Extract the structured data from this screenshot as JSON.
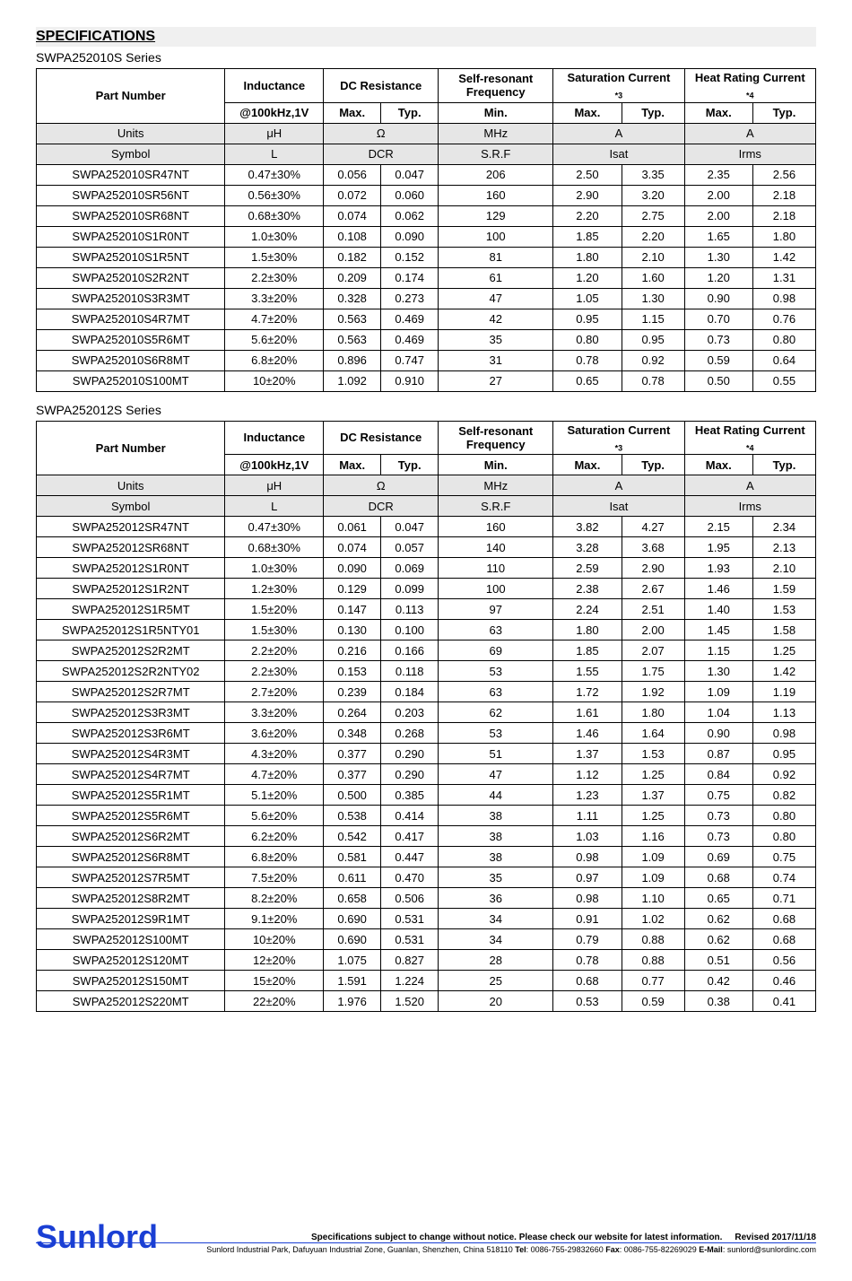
{
  "page": {
    "title": "SPECIFICATIONS"
  },
  "series1": {
    "title": "SWPA252010S Series",
    "headers": {
      "part": "Part Number",
      "inductance": "Inductance",
      "dcres": "DC Resistance",
      "srf": "Self-resonant Frequency",
      "isat": "Saturation Current",
      "isat_note": "*3",
      "irms": "Heat Rating Current",
      "irms_note": "*4",
      "ind_cond": "@100kHz,1V",
      "max": "Max.",
      "typ": "Typ.",
      "min": "Min."
    },
    "units": {
      "label": "Units",
      "ind": "μH",
      "dcr": "Ω",
      "srf": "MHz",
      "isat": "A",
      "irms": "A"
    },
    "symbol": {
      "label": "Symbol",
      "ind": "L",
      "dcr": "DCR",
      "srf": "S.R.F",
      "isat": "Isat",
      "irms": "Irms"
    },
    "rows": [
      {
        "pn": "SWPA252010SR47NT",
        "ind": "0.47±30%",
        "dmax": "0.056",
        "dtyp": "0.047",
        "srf": "206",
        "imax": "2.50",
        "ityp": "3.35",
        "rmax": "2.35",
        "rtyp": "2.56"
      },
      {
        "pn": "SWPA252010SR56NT",
        "ind": "0.56±30%",
        "dmax": "0.072",
        "dtyp": "0.060",
        "srf": "160",
        "imax": "2.90",
        "ityp": "3.20",
        "rmax": "2.00",
        "rtyp": "2.18"
      },
      {
        "pn": "SWPA252010SR68NT",
        "ind": "0.68±30%",
        "dmax": "0.074",
        "dtyp": "0.062",
        "srf": "129",
        "imax": "2.20",
        "ityp": "2.75",
        "rmax": "2.00",
        "rtyp": "2.18"
      },
      {
        "pn": "SWPA252010S1R0NT",
        "ind": "1.0±30%",
        "dmax": "0.108",
        "dtyp": "0.090",
        "srf": "100",
        "imax": "1.85",
        "ityp": "2.20",
        "rmax": "1.65",
        "rtyp": "1.80"
      },
      {
        "pn": "SWPA252010S1R5NT",
        "ind": "1.5±30%",
        "dmax": "0.182",
        "dtyp": "0.152",
        "srf": "81",
        "imax": "1.80",
        "ityp": "2.10",
        "rmax": "1.30",
        "rtyp": "1.42"
      },
      {
        "pn": "SWPA252010S2R2NT",
        "ind": "2.2±30%",
        "dmax": "0.209",
        "dtyp": "0.174",
        "srf": "61",
        "imax": "1.20",
        "ityp": "1.60",
        "rmax": "1.20",
        "rtyp": "1.31"
      },
      {
        "pn": "SWPA252010S3R3MT",
        "ind": "3.3±20%",
        "dmax": "0.328",
        "dtyp": "0.273",
        "srf": "47",
        "imax": "1.05",
        "ityp": "1.30",
        "rmax": "0.90",
        "rtyp": "0.98"
      },
      {
        "pn": "SWPA252010S4R7MT",
        "ind": "4.7±20%",
        "dmax": "0.563",
        "dtyp": "0.469",
        "srf": "42",
        "imax": "0.95",
        "ityp": "1.15",
        "rmax": "0.70",
        "rtyp": "0.76"
      },
      {
        "pn": "SWPA252010S5R6MT",
        "ind": "5.6±20%",
        "dmax": "0.563",
        "dtyp": "0.469",
        "srf": "35",
        "imax": "0.80",
        "ityp": "0.95",
        "rmax": "0.73",
        "rtyp": "0.80"
      },
      {
        "pn": "SWPA252010S6R8MT",
        "ind": "6.8±20%",
        "dmax": "0.896",
        "dtyp": "0.747",
        "srf": "31",
        "imax": "0.78",
        "ityp": "0.92",
        "rmax": "0.59",
        "rtyp": "0.64"
      },
      {
        "pn": "SWPA252010S100MT",
        "ind": "10±20%",
        "dmax": "1.092",
        "dtyp": "0.910",
        "srf": "27",
        "imax": "0.65",
        "ityp": "0.78",
        "rmax": "0.50",
        "rtyp": "0.55"
      }
    ]
  },
  "series2": {
    "title": "SWPA252012S Series",
    "rows": [
      {
        "pn": "SWPA252012SR47NT",
        "ind": "0.47±30%",
        "dmax": "0.061",
        "dtyp": "0.047",
        "srf": "160",
        "imax": "3.82",
        "ityp": "4.27",
        "rmax": "2.15",
        "rtyp": "2.34"
      },
      {
        "pn": "SWPA252012SR68NT",
        "ind": "0.68±30%",
        "dmax": "0.074",
        "dtyp": "0.057",
        "srf": "140",
        "imax": "3.28",
        "ityp": "3.68",
        "rmax": "1.95",
        "rtyp": "2.13"
      },
      {
        "pn": "SWPA252012S1R0NT",
        "ind": "1.0±30%",
        "dmax": "0.090",
        "dtyp": "0.069",
        "srf": "110",
        "imax": "2.59",
        "ityp": "2.90",
        "rmax": "1.93",
        "rtyp": "2.10"
      },
      {
        "pn": "SWPA252012S1R2NT",
        "ind": "1.2±30%",
        "dmax": "0.129",
        "dtyp": "0.099",
        "srf": "100",
        "imax": "2.38",
        "ityp": "2.67",
        "rmax": "1.46",
        "rtyp": "1.59"
      },
      {
        "pn": "SWPA252012S1R5MT",
        "ind": "1.5±20%",
        "dmax": "0.147",
        "dtyp": "0.113",
        "srf": "97",
        "imax": "2.24",
        "ityp": "2.51",
        "rmax": "1.40",
        "rtyp": "1.53"
      },
      {
        "pn": "SWPA252012S1R5NTY01",
        "ind": "1.5±30%",
        "dmax": "0.130",
        "dtyp": "0.100",
        "srf": "63",
        "imax": "1.80",
        "ityp": "2.00",
        "rmax": "1.45",
        "rtyp": "1.58"
      },
      {
        "pn": "SWPA252012S2R2MT",
        "ind": "2.2±20%",
        "dmax": "0.216",
        "dtyp": "0.166",
        "srf": "69",
        "imax": "1.85",
        "ityp": "2.07",
        "rmax": "1.15",
        "rtyp": "1.25"
      },
      {
        "pn": "SWPA252012S2R2NTY02",
        "ind": "2.2±30%",
        "dmax": "0.153",
        "dtyp": "0.118",
        "srf": "53",
        "imax": "1.55",
        "ityp": "1.75",
        "rmax": "1.30",
        "rtyp": "1.42"
      },
      {
        "pn": "SWPA252012S2R7MT",
        "ind": "2.7±20%",
        "dmax": "0.239",
        "dtyp": "0.184",
        "srf": "63",
        "imax": "1.72",
        "ityp": "1.92",
        "rmax": "1.09",
        "rtyp": "1.19"
      },
      {
        "pn": "SWPA252012S3R3MT",
        "ind": "3.3±20%",
        "dmax": "0.264",
        "dtyp": "0.203",
        "srf": "62",
        "imax": "1.61",
        "ityp": "1.80",
        "rmax": "1.04",
        "rtyp": "1.13"
      },
      {
        "pn": "SWPA252012S3R6MT",
        "ind": "3.6±20%",
        "dmax": "0.348",
        "dtyp": "0.268",
        "srf": "53",
        "imax": "1.46",
        "ityp": "1.64",
        "rmax": "0.90",
        "rtyp": "0.98"
      },
      {
        "pn": "SWPA252012S4R3MT",
        "ind": "4.3±20%",
        "dmax": "0.377",
        "dtyp": "0.290",
        "srf": "51",
        "imax": "1.37",
        "ityp": "1.53",
        "rmax": "0.87",
        "rtyp": "0.95"
      },
      {
        "pn": "SWPA252012S4R7MT",
        "ind": "4.7±20%",
        "dmax": "0.377",
        "dtyp": "0.290",
        "srf": "47",
        "imax": "1.12",
        "ityp": "1.25",
        "rmax": "0.84",
        "rtyp": "0.92"
      },
      {
        "pn": "SWPA252012S5R1MT",
        "ind": "5.1±20%",
        "dmax": "0.500",
        "dtyp": "0.385",
        "srf": "44",
        "imax": "1.23",
        "ityp": "1.37",
        "rmax": "0.75",
        "rtyp": "0.82"
      },
      {
        "pn": "SWPA252012S5R6MT",
        "ind": "5.6±20%",
        "dmax": "0.538",
        "dtyp": "0.414",
        "srf": "38",
        "imax": "1.11",
        "ityp": "1.25",
        "rmax": "0.73",
        "rtyp": "0.80"
      },
      {
        "pn": "SWPA252012S6R2MT",
        "ind": "6.2±20%",
        "dmax": "0.542",
        "dtyp": "0.417",
        "srf": "38",
        "imax": "1.03",
        "ityp": "1.16",
        "rmax": "0.73",
        "rtyp": "0.80"
      },
      {
        "pn": "SWPA252012S6R8MT",
        "ind": "6.8±20%",
        "dmax": "0.581",
        "dtyp": "0.447",
        "srf": "38",
        "imax": "0.98",
        "ityp": "1.09",
        "rmax": "0.69",
        "rtyp": "0.75"
      },
      {
        "pn": "SWPA252012S7R5MT",
        "ind": "7.5±20%",
        "dmax": "0.611",
        "dtyp": "0.470",
        "srf": "35",
        "imax": "0.97",
        "ityp": "1.09",
        "rmax": "0.68",
        "rtyp": "0.74"
      },
      {
        "pn": "SWPA252012S8R2MT",
        "ind": "8.2±20%",
        "dmax": "0.658",
        "dtyp": "0.506",
        "srf": "36",
        "imax": "0.98",
        "ityp": "1.10",
        "rmax": "0.65",
        "rtyp": "0.71"
      },
      {
        "pn": "SWPA252012S9R1MT",
        "ind": "9.1±20%",
        "dmax": "0.690",
        "dtyp": "0.531",
        "srf": "34",
        "imax": "0.91",
        "ityp": "1.02",
        "rmax": "0.62",
        "rtyp": "0.68"
      },
      {
        "pn": "SWPA252012S100MT",
        "ind": "10±20%",
        "dmax": "0.690",
        "dtyp": "0.531",
        "srf": "34",
        "imax": "0.79",
        "ityp": "0.88",
        "rmax": "0.62",
        "rtyp": "0.68"
      },
      {
        "pn": "SWPA252012S120MT",
        "ind": "12±20%",
        "dmax": "1.075",
        "dtyp": "0.827",
        "srf": "28",
        "imax": "0.78",
        "ityp": "0.88",
        "rmax": "0.51",
        "rtyp": "0.56"
      },
      {
        "pn": "SWPA252012S150MT",
        "ind": "15±20%",
        "dmax": "1.591",
        "dtyp": "1.224",
        "srf": "25",
        "imax": "0.68",
        "ityp": "0.77",
        "rmax": "0.42",
        "rtyp": "0.46"
      },
      {
        "pn": "SWPA252012S220MT",
        "ind": "22±20%",
        "dmax": "1.976",
        "dtyp": "1.520",
        "srf": "20",
        "imax": "0.53",
        "ityp": "0.59",
        "rmax": "0.38",
        "rtyp": "0.41"
      }
    ]
  },
  "footer": {
    "brand": "Sunlord",
    "disclaimer": "Specifications subject to change without notice. Please check our website for latest information.",
    "revised": "Revised 2017/11/18",
    "address_pre": "Sunlord Industrial Park, Dafuyuan Industrial Zone, Guanlan, Shenzhen, China 518110 ",
    "tel_label": "Tel",
    "tel": ": 0086-755-29832660 ",
    "fax_label": "Fax",
    "fax": ": 0086-755-82269029 ",
    "email_label": "E-Mail",
    "email": ": sunlord@sunlordinc.com"
  }
}
